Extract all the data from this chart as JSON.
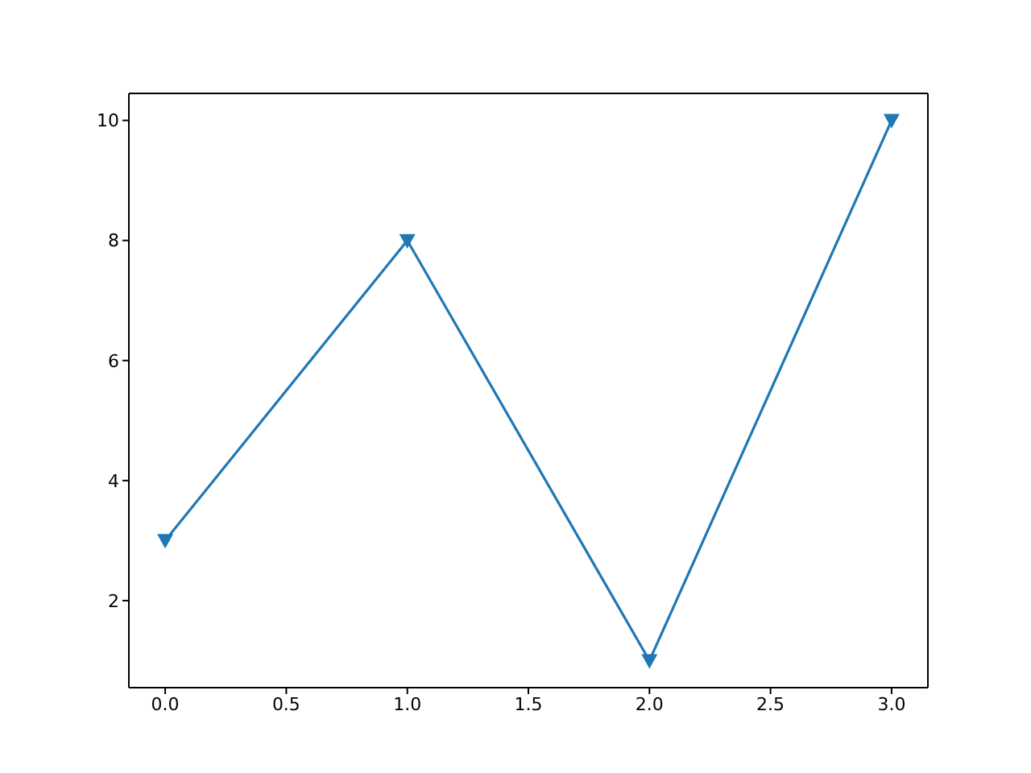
{
  "chart_data": {
    "type": "line",
    "x": [
      0,
      1,
      2,
      3
    ],
    "series": [
      {
        "color": "#1f77b4",
        "values": [
          3,
          8,
          1,
          10
        ]
      }
    ],
    "xlim": [
      -0.15,
      3.15
    ],
    "xticks": [
      {
        "value": 0,
        "label": "0.0"
      },
      0.5,
      {
        "value": 1,
        "label": "1.0"
      },
      1.5,
      {
        "value": 2,
        "label": "2.0"
      },
      2.5,
      {
        "value": 3,
        "label": "3.0"
      }
    ],
    "ylim": [
      0.55,
      10.45
    ],
    "yticks": [
      2,
      4,
      6,
      8,
      10
    ],
    "marker": "triangle",
    "line_style": "solid"
  }
}
